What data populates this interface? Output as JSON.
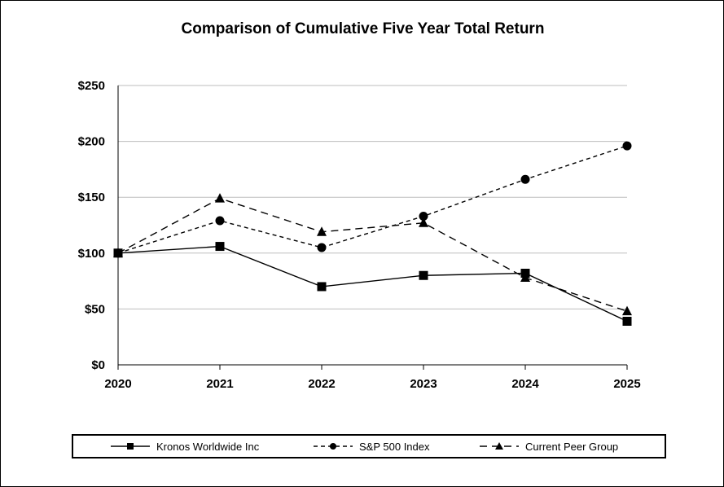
{
  "chart_data": {
    "type": "line",
    "title": "Comparison of Cumulative Five Year Total Return",
    "x": [
      "2020",
      "2021",
      "2022",
      "2023",
      "2024",
      "2025"
    ],
    "y_ticks": [
      "$0",
      "$50",
      "$100",
      "$150",
      "$200",
      "$250"
    ],
    "ylim": [
      0,
      250
    ],
    "grid": true,
    "legend_position": "bottom",
    "series": [
      {
        "name": "Kronos Worldwide Inc",
        "values": [
          100,
          106,
          70,
          80,
          82,
          39
        ],
        "marker": "square",
        "dash": "solid"
      },
      {
        "name": "S&P 500 Index",
        "values": [
          100,
          129,
          105,
          133,
          166,
          196
        ],
        "marker": "circle",
        "dash": "short-dash"
      },
      {
        "name": "Current Peer Group",
        "values": [
          100,
          149,
          119,
          127,
          78,
          48
        ],
        "marker": "triangle",
        "dash": "long-dash"
      }
    ]
  }
}
